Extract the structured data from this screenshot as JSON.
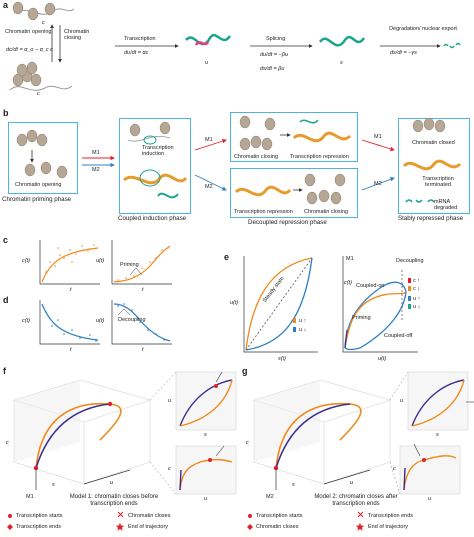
{
  "panel_labels": {
    "a": "a",
    "b": "b",
    "c": "c",
    "d": "d",
    "e": "e",
    "f": "f",
    "g": "g"
  },
  "a": {
    "opening": "Chromatin opening",
    "closing": "Chromatin closing",
    "transcription": "Transcription",
    "splicing": "Splicing",
    "degradation": "Degradation/ nuclear export",
    "c_label": "c",
    "u_label": "u",
    "s_label": "s",
    "eq_c": "dc/dt = α_o − α_c c",
    "eq_u": "du/dt = αc",
    "eq_s1": "du/dt = −βu",
    "eq_s2": "ds/dt = βu",
    "eq_deg": "ds/dt = −γs"
  },
  "b": {
    "priming_phase": "Chromatin priming phase",
    "chromatin_opening": "Chromatin opening",
    "coupled_phase": "Coupled induction phase",
    "transcription_induction": "Transcription induction",
    "decoupled_phase": "Decoupled repression phase",
    "chromatin_closing": "Chromatin closing",
    "transcription_repression": "Transcription repression",
    "stably_repressed": "Stably repressed phase",
    "chromatin_closed": "Chromatin closed",
    "transcription_terminated": "Transcription terminated",
    "mrna_degraded": "mRNA degraded",
    "m1": "M1",
    "m2": "M2"
  },
  "c": {
    "ct": "c(t)",
    "ut": "u(t)",
    "t": "t",
    "priming": "Priming"
  },
  "d": {
    "ct": "c(t)",
    "ut": "u(t)",
    "t": "t",
    "decoupling": "Decoupling"
  },
  "e": {
    "ut": "u(t)",
    "st": "s(t)",
    "steady_state": "Steady state",
    "u_up": "u ↑",
    "u_down": "u ↓",
    "m1": "M1",
    "ct": "c(t)",
    "decoupling": "Decoupling",
    "coupled_on": "Coupled-on",
    "priming": "Priming",
    "coupled_off": "Coupled-off",
    "c_up": "c ↑",
    "c_down": "c ↓"
  },
  "f": {
    "model_title": "Model 1: chromatin closes before transcription ends",
    "m1": "M1",
    "c": "c",
    "s": "s",
    "u": "u",
    "legend": [
      {
        "symbol": "dot",
        "text": "Transcription starts"
      },
      {
        "symbol": "x",
        "text": "Chromatin closes"
      },
      {
        "symbol": "diamond",
        "text": "Transcription ends"
      },
      {
        "symbol": "star",
        "text": "End of trajectory"
      }
    ]
  },
  "g": {
    "model_title": "Model 2: chromatin closes after transcription ends",
    "m2": "M2",
    "c": "c",
    "s": "s",
    "u": "u",
    "legend": [
      {
        "symbol": "dot",
        "text": "Transcription starts"
      },
      {
        "symbol": "x",
        "text": "Transcription ends"
      },
      {
        "symbol": "diamond",
        "text": "Chromatin closes"
      },
      {
        "symbol": "star",
        "text": "End of trajectory"
      }
    ]
  },
  "colors": {
    "box": "#4fb3e0",
    "mrna": "#1aa58f",
    "dna": "#e89a2a",
    "nucleosome": "#b5a695",
    "red": "#e0202b",
    "blue": "#2f7fc6",
    "orange": "#f08a1c",
    "purple": "#3a2f8f",
    "pink": "#e83c7c"
  }
}
